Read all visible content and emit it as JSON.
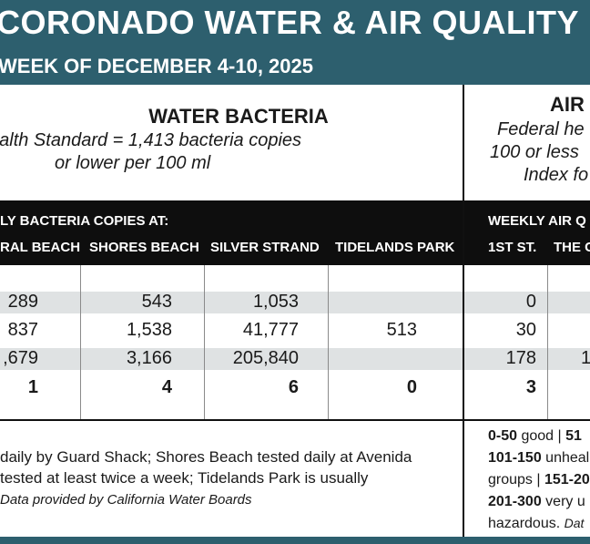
{
  "header": {
    "title": "CORONADO WATER & AIR QUALITY",
    "subtitle": "WEEK OF DECEMBER 4-10, 2025"
  },
  "water": {
    "title": "WATER BACTERIA",
    "standard_line1": "ealth Standard  = 1,413 bacteria copies",
    "standard_line2": "or lower per 100 ml",
    "table_header": "LY BACTERIA COPIES AT:",
    "columns": [
      "RAL BEACH",
      "SHORES BEACH",
      "SILVER STRAND",
      "TIDELANDS PARK"
    ],
    "rows": [
      [
        "289",
        "543",
        "1,053",
        ""
      ],
      [
        "837",
        "1,538",
        "41,777",
        "513"
      ],
      [
        ",679",
        "3,166",
        "205,840",
        ""
      ],
      [
        "1",
        "4",
        "6",
        "0"
      ]
    ],
    "note_line1": "daily by Guard Shack; Shores Beach tested daily at Avenida",
    "note_line2": "tested at least twice a week; Tidelands Park is usually",
    "note_source": "Data provided by California Water Boards"
  },
  "air": {
    "title": "AIR",
    "line1": "Federal he",
    "line2": "100 or less",
    "line3": "Index fo",
    "table_header": "WEEKLY AIR Q",
    "columns": [
      "1ST ST.",
      "THE C"
    ],
    "rows": [
      [
        "0",
        ""
      ],
      [
        "30",
        ""
      ],
      [
        "178",
        "1"
      ],
      [
        "3",
        ""
      ]
    ],
    "legend": {
      "l1_bold": "0-50",
      "l1_text": " good | ",
      "l1_bold2": "51",
      "l2_bold": "101-150",
      "l2_text": " unheal",
      "l3_text": "groups | ",
      "l3_bold": "151-20",
      "l4_bold": "201-300",
      "l4_text": " very u",
      "l5_text": "hazardous. ",
      "l5_italic": "Dat"
    }
  },
  "colors": {
    "header_bg": "#2d5f6e",
    "table_header_bg": "#0e0e0e",
    "row_band": "#dfe2e3"
  }
}
